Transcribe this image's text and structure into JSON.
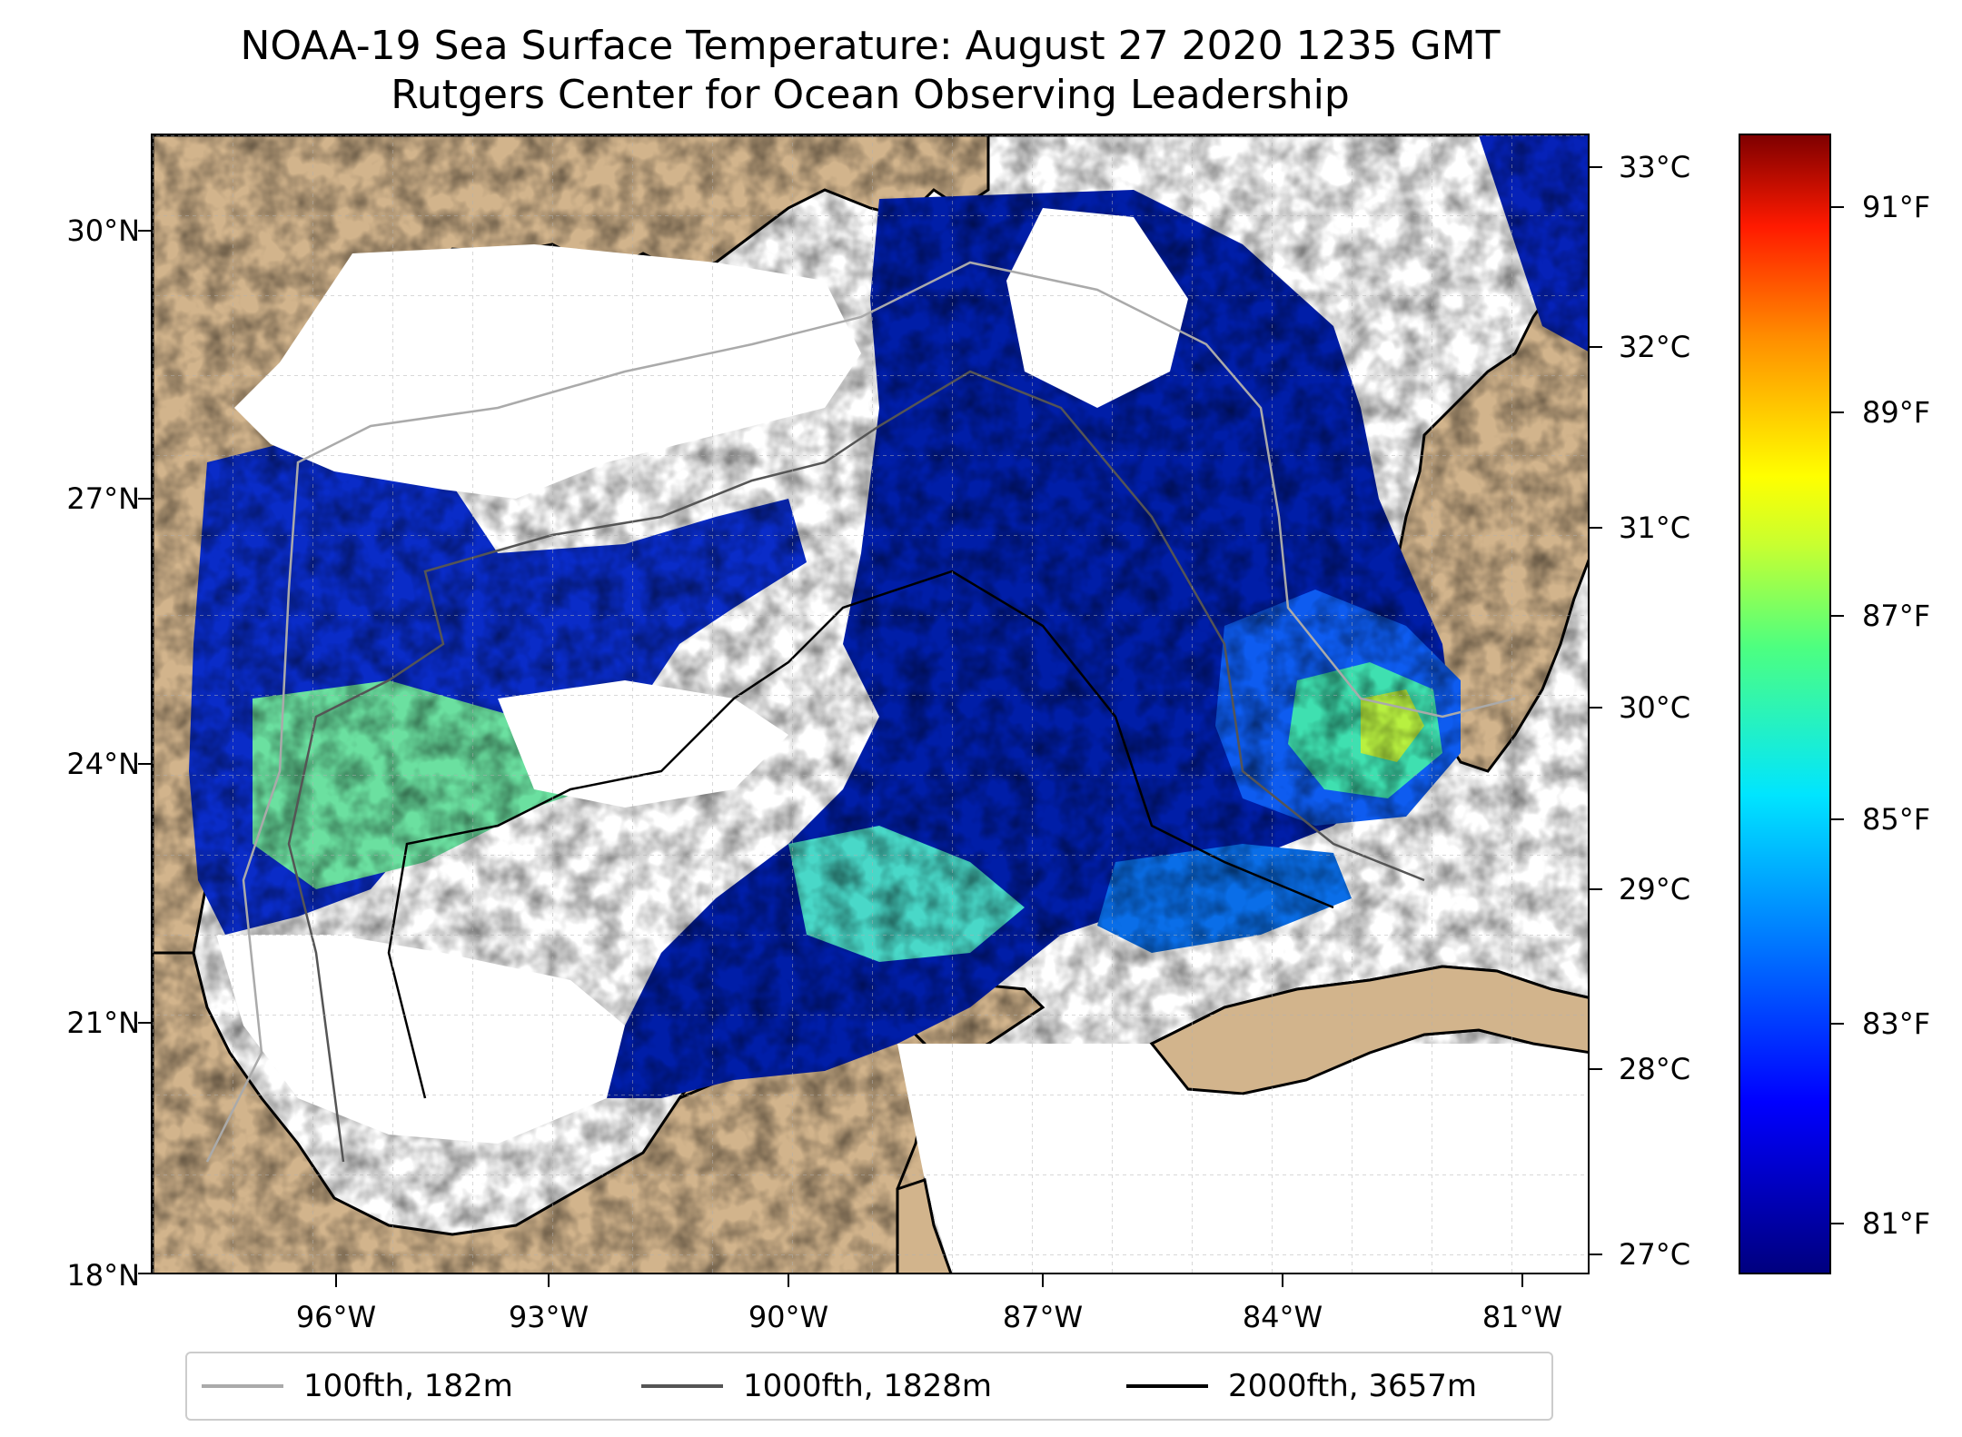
{
  "title": {
    "line1": "NOAA-19 Sea Surface Temperature: August 27 2020 1235 GMT",
    "line2": "Rutgers Center for Ocean Observing Leadership"
  },
  "map": {
    "lat_labels": [
      "30°N",
      "27°N",
      "24°N",
      "21°N",
      "18°N"
    ],
    "lon_labels": [
      "96°W",
      "93°W",
      "90°W",
      "87°W",
      "84°W",
      "81°W"
    ],
    "land_color": "#d2b48c",
    "no_data_color": "#ffffff"
  },
  "colorbar": {
    "celsius_labels": [
      "33°C",
      "32°C",
      "31°C",
      "30°C",
      "29°C",
      "28°C",
      "27°C"
    ],
    "fahrenheit_labels": [
      "91°F",
      "89°F",
      "87°F",
      "85°F",
      "83°F",
      "81°F"
    ],
    "colormap": "jet"
  },
  "legend": {
    "items": [
      {
        "label": "100fth, 182m",
        "color": "#aaaaaa"
      },
      {
        "label": "1000fth, 1828m",
        "color": "#555555"
      },
      {
        "label": "2000fth, 3657m",
        "color": "#000000"
      }
    ]
  }
}
